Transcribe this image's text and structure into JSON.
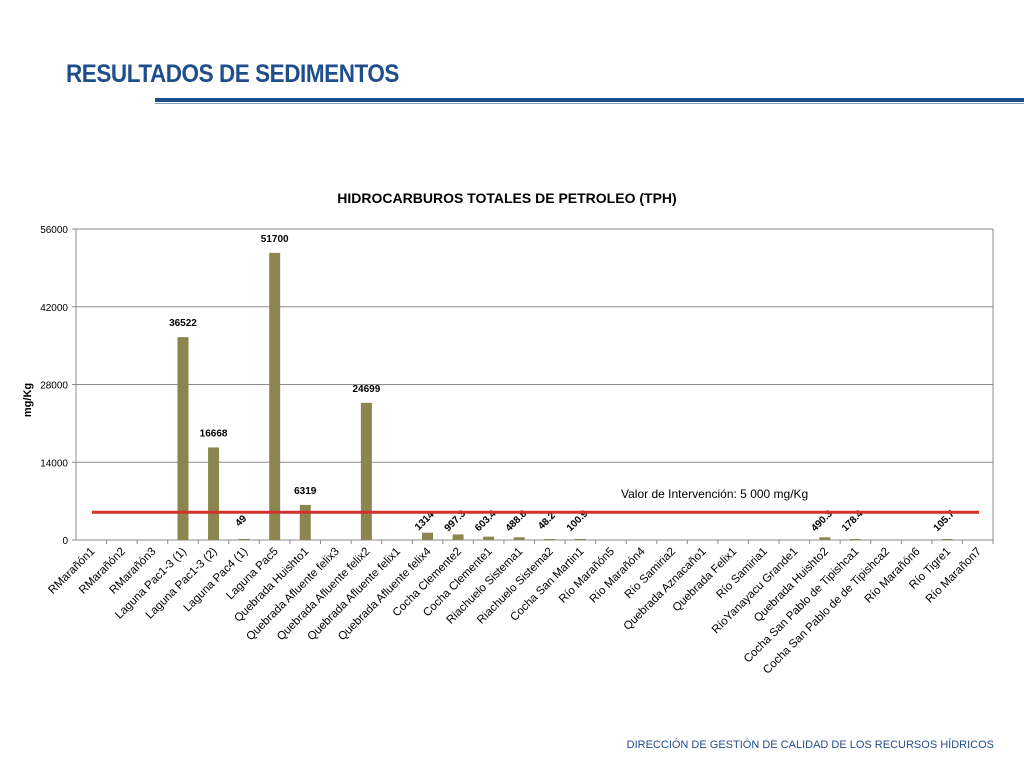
{
  "slide": {
    "title": "RESULTADOS DE SEDIMENTOS",
    "footer": "DIRECCIÓN DE GESTIÓN DE CALIDAD DE LOS RECURSOS HÍDRICOS"
  },
  "colors": {
    "title": "#1f4e8c",
    "bar": "#8b8650",
    "threshold_line": "#d2322d",
    "grid": "#8c8c8c"
  },
  "chart_data": {
    "type": "bar",
    "title": "HIDROCARBUROS TOTALES DE PETROLEO (TPH)",
    "xlabel": "",
    "ylabel": "mg/Kg",
    "ylim": [
      0,
      56000
    ],
    "yticks": [
      "0",
      "14000",
      "28000",
      "42000",
      "56000"
    ],
    "grid": true,
    "categories": [
      "RMarañón1",
      "RMarañón2",
      "RMarañón3",
      "Laguna Pac1-3 (1)",
      "Laguna Pac1-3 (2)",
      "Laguna Pac4 (1)",
      "Laguna Pac5",
      "Quebrada Huishto1",
      "Quebrada Afluente felix3",
      "Quebrada Afluente felix2",
      "Quebrada Afluente felix1",
      "Quebrada Afluente felix4",
      "Cocha Clemente2",
      "Cocha Clemente1",
      "Riachuelo Sistema1",
      "Riachuelo Sistema2",
      "Cocha San Martin1",
      "Río Marañón5",
      "Río Marañón4",
      "Río Samiria2",
      "Quebrada Aznacaño1",
      "Quebrada Felix1",
      "Río Samiria1",
      "RíoYanayacu Grande1",
      "Quebrada Huishto2",
      "Cocha San Pablo de Tipishca1",
      "Cocha San Pablo de de Tipishca2",
      "Río Marañón6",
      "Río Tigre1",
      "Río Marañon7"
    ],
    "values": [
      null,
      null,
      null,
      36522,
      16668,
      49,
      51700,
      6319,
      null,
      24699,
      null,
      1314,
      997.3,
      603.4,
      488.8,
      48.2,
      100.9,
      null,
      null,
      null,
      null,
      null,
      null,
      null,
      490.3,
      178.4,
      null,
      null,
      105.7,
      null
    ],
    "data_labels": [
      "",
      "",
      "",
      "36522",
      "16668",
      "49",
      "51700",
      "6319",
      "",
      "24699",
      "",
      "1314",
      "997.3",
      "603.4",
      "488.8",
      "48.2",
      "100.9",
      "",
      "",
      "",
      "",
      "",
      "",
      "",
      "490.3",
      "178.4",
      "",
      "",
      "105.7",
      ""
    ],
    "reference_line": {
      "value": 5000,
      "label": "Valor de Intervención: 5 000 mg/Kg"
    }
  }
}
